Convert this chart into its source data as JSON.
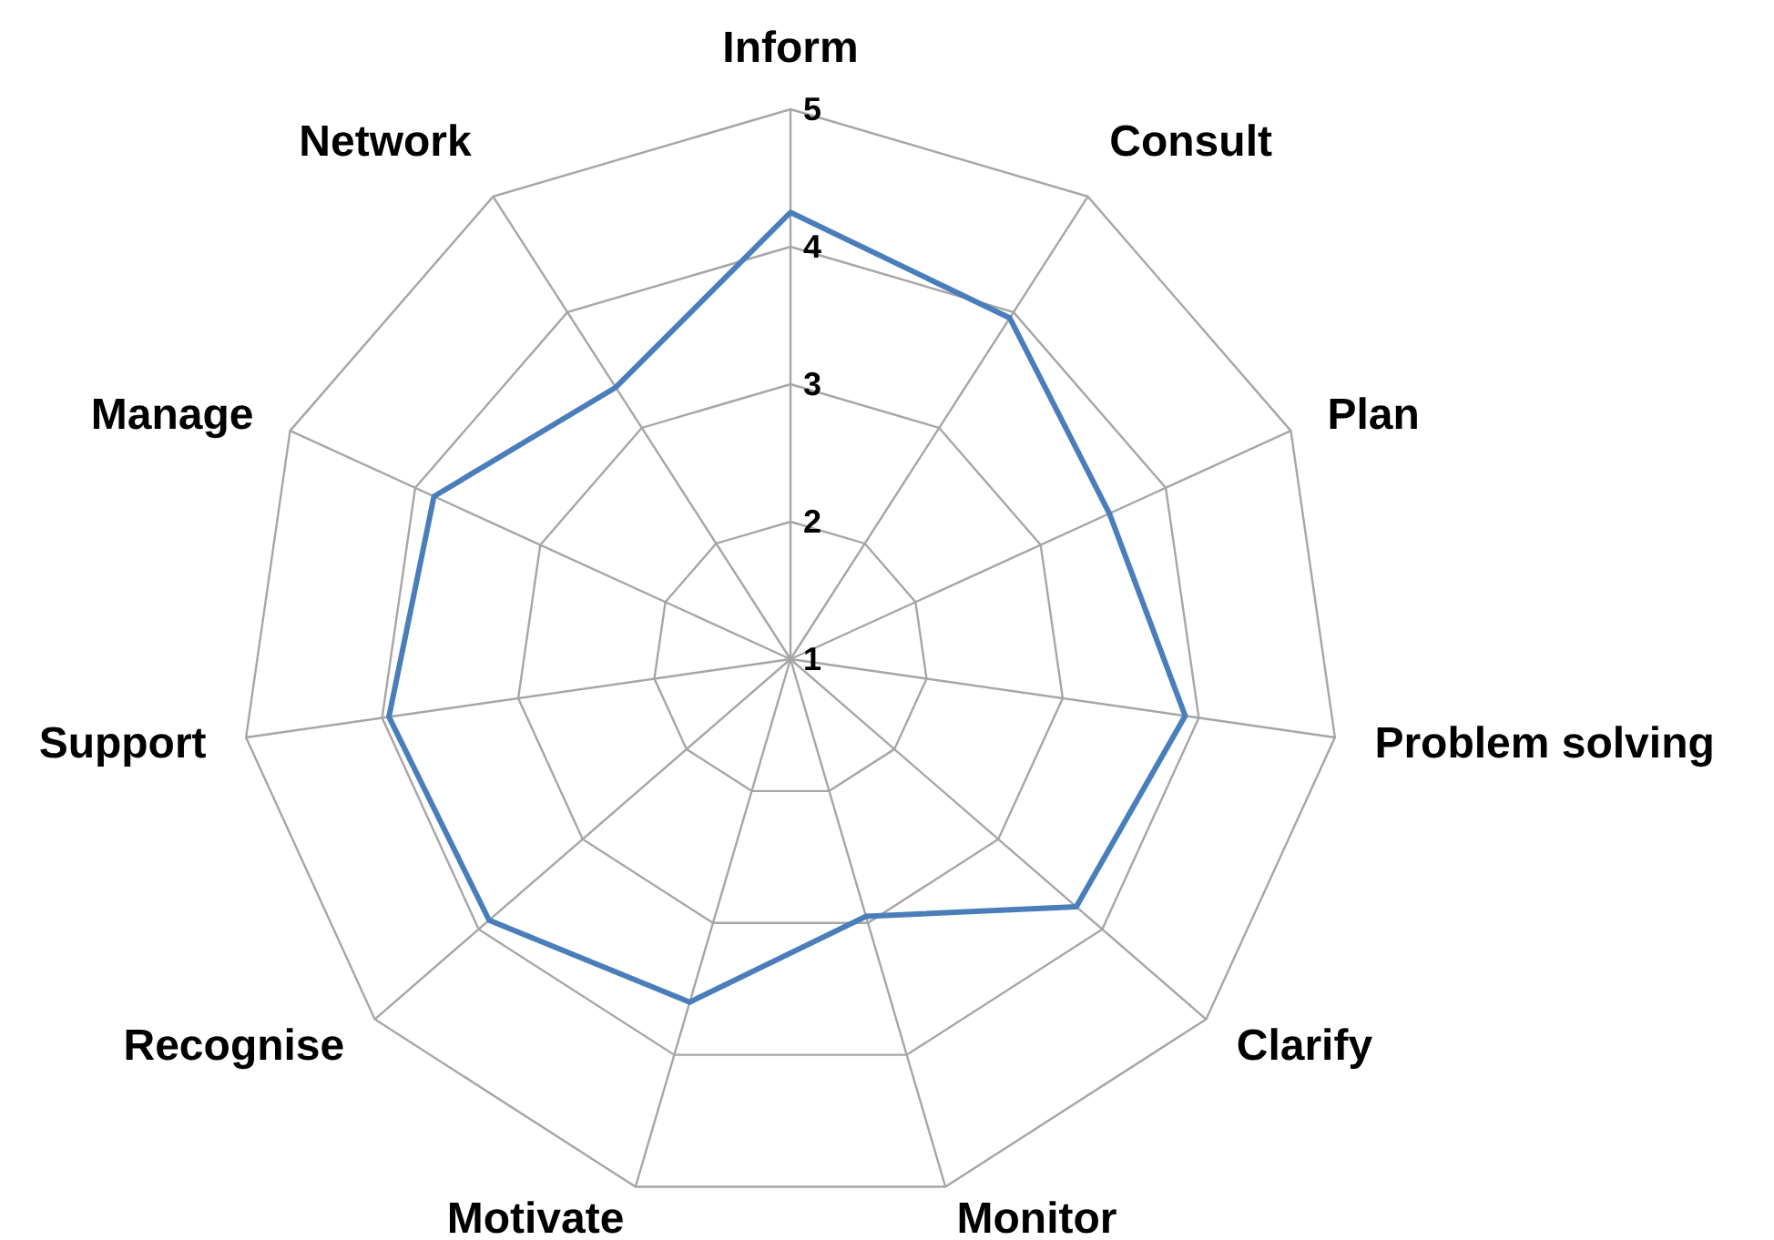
{
  "chart_data": {
    "type": "radar",
    "categories": [
      "Inform",
      "Consult",
      "Plan",
      "Problem solving",
      "Clarify",
      "Monitor",
      "Motivate",
      "Recognise",
      "Support",
      "Manage",
      "Network"
    ],
    "series": [
      {
        "color": "#4a7ebb",
        "values": [
          4.25,
          3.95,
          3.55,
          3.9,
          3.75,
          2.95,
          3.6,
          3.9,
          3.95,
          3.85,
          3.35
        ]
      }
    ],
    "ylim": [
      1,
      5
    ],
    "yticks": [
      1,
      2,
      3,
      4,
      5
    ],
    "grid": true,
    "marker": "none"
  }
}
